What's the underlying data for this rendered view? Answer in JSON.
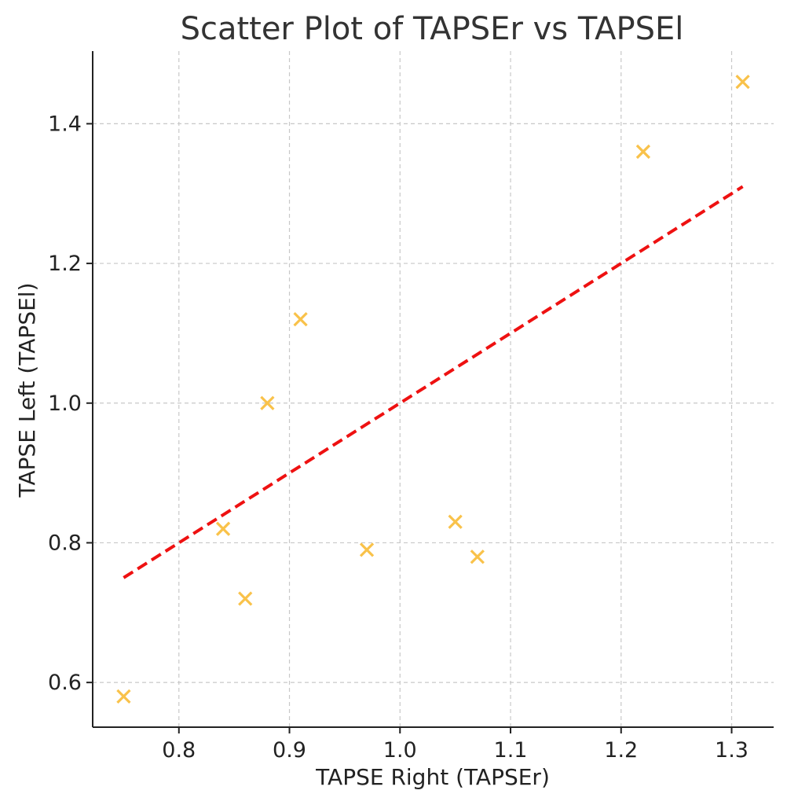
{
  "chart_data": {
    "type": "scatter",
    "title": "Scatter Plot of TAPSEr vs TAPSEl",
    "xlabel": "TAPSE Right (TAPSEr)",
    "ylabel": "TAPSE Left (TAPSEl)",
    "xlim": [
      0.722,
      1.338
    ],
    "ylim": [
      0.536,
      1.504
    ],
    "xticks": [
      0.8,
      0.9,
      1.0,
      1.1,
      1.2,
      1.3
    ],
    "xtick_labels": [
      "0.8",
      "0.9",
      "1.0",
      "1.1",
      "1.2",
      "1.3"
    ],
    "yticks": [
      0.6,
      0.8,
      1.0,
      1.2,
      1.4
    ],
    "ytick_labels": [
      "0.6",
      "0.8",
      "1.0",
      "1.2",
      "1.4"
    ],
    "grid": true,
    "series": [
      {
        "marker": "x",
        "color": "#f9c24a",
        "points": [
          {
            "x": 0.75,
            "y": 0.58
          },
          {
            "x": 0.84,
            "y": 0.82
          },
          {
            "x": 0.86,
            "y": 0.72
          },
          {
            "x": 0.88,
            "y": 1.0
          },
          {
            "x": 0.91,
            "y": 1.12
          },
          {
            "x": 0.97,
            "y": 0.79
          },
          {
            "x": 1.05,
            "y": 0.83
          },
          {
            "x": 1.07,
            "y": 0.78
          },
          {
            "x": 1.22,
            "y": 1.36
          },
          {
            "x": 1.31,
            "y": 1.46
          }
        ]
      }
    ],
    "reference_line": {
      "style": "dashed",
      "color": "#ee1111",
      "points": [
        {
          "x": 0.75,
          "y": 0.75
        },
        {
          "x": 1.31,
          "y": 1.31
        }
      ]
    }
  }
}
